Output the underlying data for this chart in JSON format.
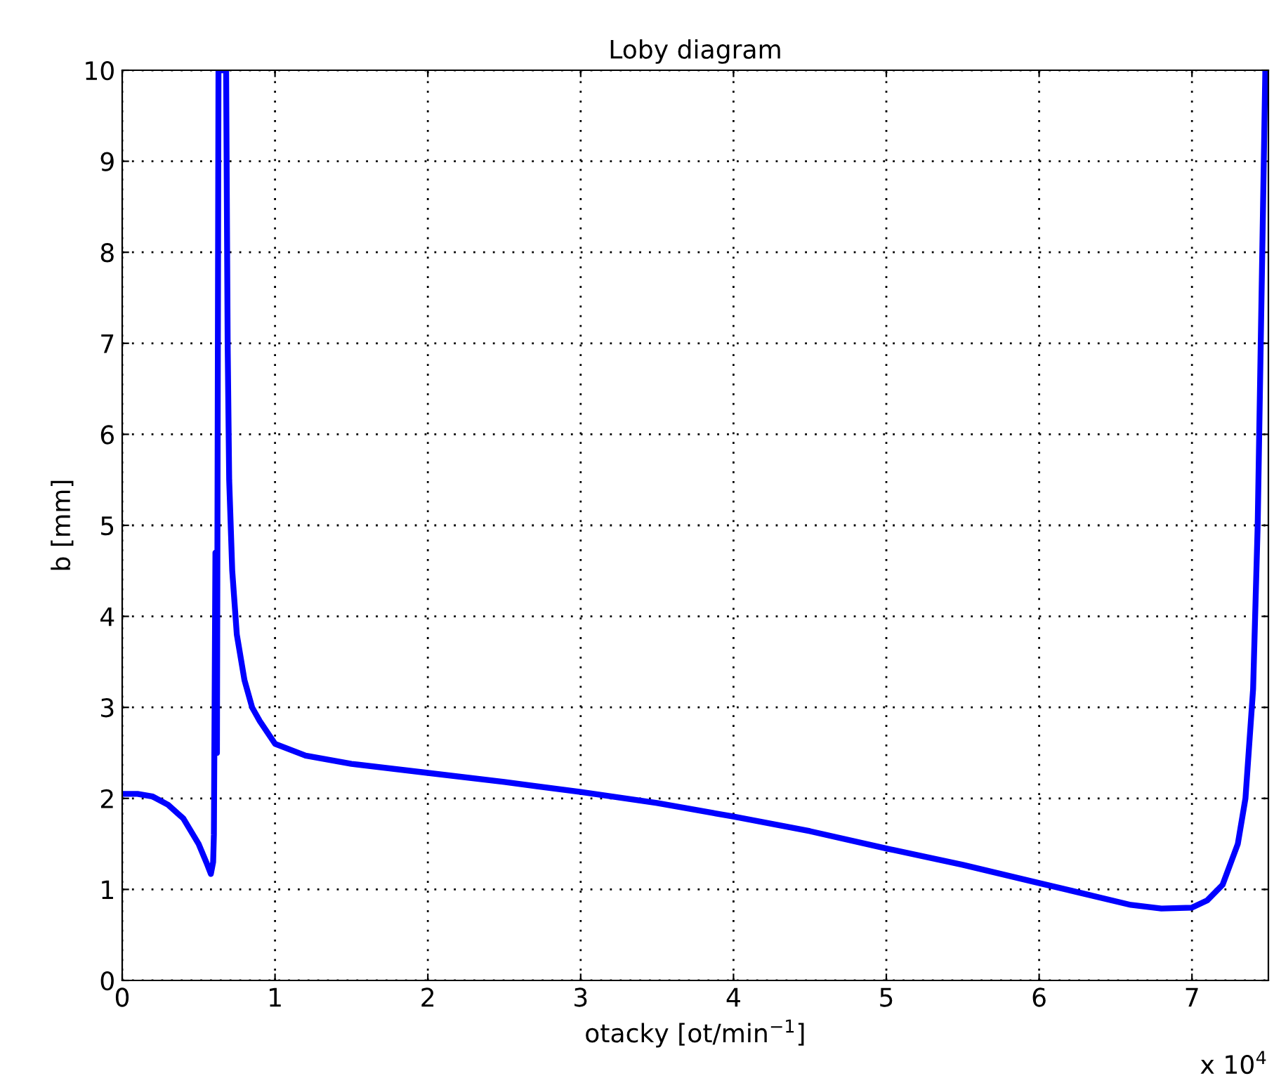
{
  "chart_data": {
    "type": "line",
    "title": "Loby diagram",
    "xlabel": "otacky [ot/min$^{−1}$]",
    "ylabel": "b [mm]",
    "annotations": [
      "x 10$^{4}$"
    ],
    "series": [
      {
        "color": "#0000ff",
        "x": [
          0,
          0.1,
          0.2,
          0.3,
          0.4,
          0.5,
          0.55,
          0.58,
          0.595,
          0.6,
          0.61,
          0.62,
          0.63,
          0.65,
          0.68,
          0.69,
          0.7,
          0.72,
          0.75,
          0.8,
          0.85,
          0.9,
          1.0,
          1.2,
          1.5,
          2.0,
          2.5,
          3.0,
          3.5,
          4.0,
          4.5,
          5.0,
          5.5,
          6.0,
          6.3,
          6.6,
          6.8,
          7.0,
          7.1,
          7.2,
          7.3,
          7.35,
          7.4,
          7.43,
          7.46,
          7.48
        ],
        "values": [
          2.05,
          2.05,
          2.02,
          1.93,
          1.78,
          1.5,
          1.3,
          1.17,
          1.3,
          1.6,
          4.7,
          2.5,
          10,
          10,
          10,
          7,
          5.5,
          4.5,
          3.8,
          3.3,
          3.0,
          2.85,
          2.6,
          2.47,
          2.38,
          2.28,
          2.18,
          2.07,
          1.95,
          1.8,
          1.64,
          1.45,
          1.27,
          1.07,
          0.95,
          0.83,
          0.79,
          0.8,
          0.88,
          1.05,
          1.5,
          2.0,
          3.2,
          5,
          8,
          10
        ]
      }
    ],
    "xlim": [
      0,
      7.5
    ],
    "xticks": [
      0,
      1,
      2,
      3,
      4,
      5,
      6,
      7
    ],
    "ylim": [
      0,
      10
    ],
    "yticks": [
      0,
      1,
      2,
      3,
      4,
      5,
      6,
      7,
      8,
      9,
      10
    ],
    "grid": true,
    "line_style": "solid"
  }
}
